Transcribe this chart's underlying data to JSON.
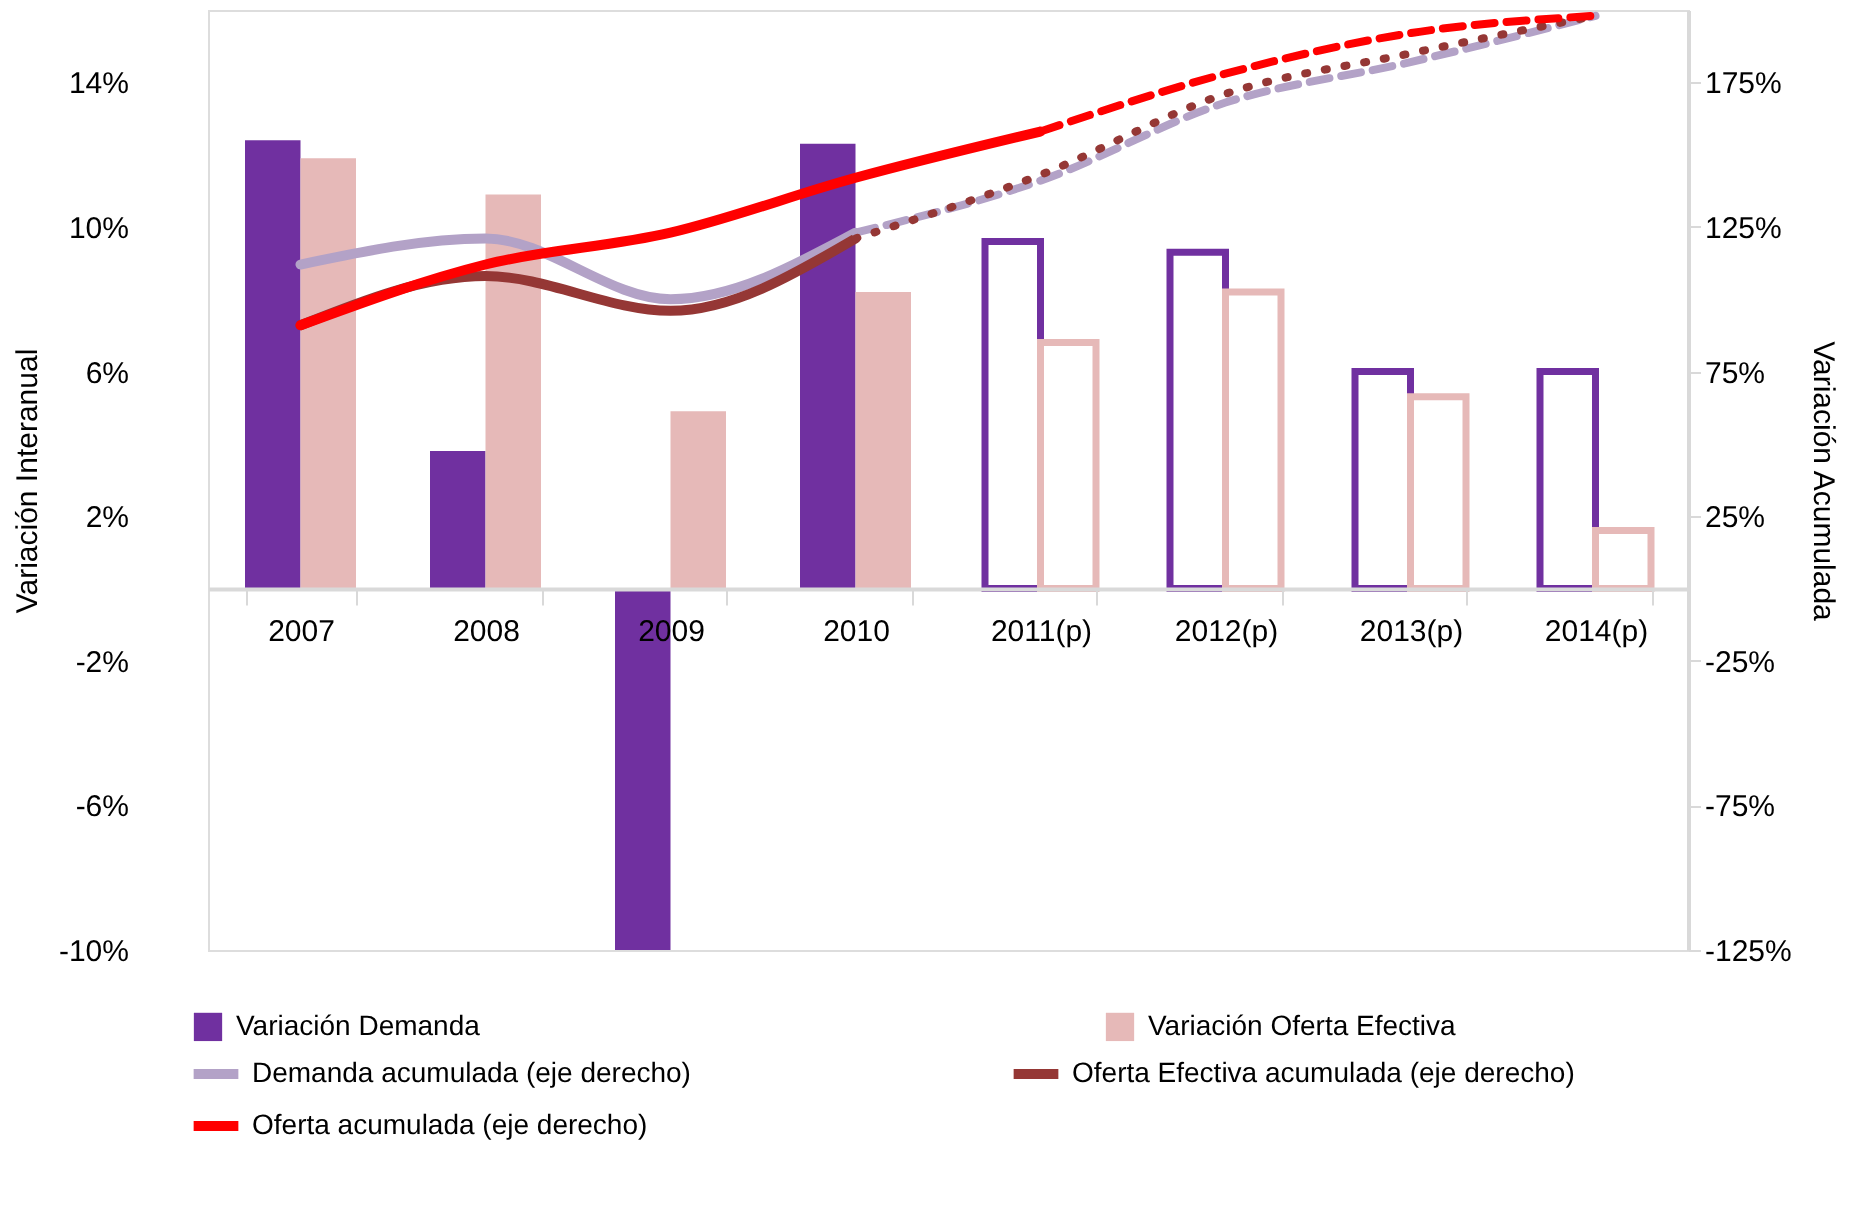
{
  "chart_data": {
    "type": "bar",
    "categories": [
      "2007",
      "2008",
      "2009",
      "2010",
      "2011(p)",
      "2012(p)",
      "2013(p)",
      "2014(p)"
    ],
    "ylabel": "Variación Interanual",
    "y2label": "Variación Acumulada",
    "ylim": [
      -10,
      16
    ],
    "yticks": [
      {
        "value": -10,
        "label": "-10%"
      },
      {
        "value": -6,
        "label": "-6%"
      },
      {
        "value": -2,
        "label": "-2%"
      },
      {
        "value": 2,
        "label": "2%"
      },
      {
        "value": 6,
        "label": "6%"
      },
      {
        "value": 10,
        "label": "10%"
      },
      {
        "value": 14,
        "label": "14%"
      }
    ],
    "y2lim": [
      -125,
      200
    ],
    "y2ticks": [
      {
        "value": -125,
        "label": "-125%"
      },
      {
        "value": -75,
        "label": "-75%"
      },
      {
        "value": -25,
        "label": "-25%"
      },
      {
        "value": 25,
        "label": "25%"
      },
      {
        "value": 75,
        "label": "75%"
      },
      {
        "value": 125,
        "label": "125%"
      },
      {
        "value": 175,
        "label": "175%"
      }
    ],
    "legend": "bottom",
    "grid": false,
    "series": [
      {
        "name": "Variación Demanda",
        "color": "#7030a0",
        "values": [
          12.4,
          3.8,
          -10.0,
          12.3,
          null,
          null,
          null,
          null
        ]
      },
      {
        "name": "Variación Oferta Efectiva",
        "color": "#e6b9b8",
        "values": [
          11.9,
          10.9,
          4.9,
          8.2,
          null,
          null,
          null,
          null
        ]
      },
      {
        "color": "#7030a0",
        "line_style": "solid",
        "values": [
          null,
          null,
          null,
          null,
          9.6,
          9.3,
          6.0,
          6.0
        ]
      },
      {
        "color": "#e6b9b8",
        "line_style": "solid",
        "values": [
          null,
          null,
          null,
          null,
          6.8,
          8.2,
          5.3,
          1.6
        ]
      },
      {
        "name": "Demanda acumulada (eje derecho)",
        "type": "line",
        "axis": "y2",
        "color": "#b3a2c7",
        "line_style": "solid",
        "values": [
          112,
          121,
          100,
          123,
          null,
          null,
          null,
          null
        ]
      },
      {
        "name": "Oferta Efectiva acumulada (eje derecho)",
        "type": "line",
        "axis": "y2",
        "color": "#953735",
        "line_style": "solid",
        "values": [
          91,
          108,
          96,
          121,
          null,
          null,
          null,
          null
        ]
      },
      {
        "name": "Oferta acumulada (eje derecho)",
        "type": "line",
        "axis": "y2",
        "color": "#ff0000",
        "line_style": "solid",
        "values": [
          91,
          112,
          123,
          142,
          158,
          null,
          null,
          null
        ]
      },
      {
        "type": "line",
        "axis": "y2",
        "color": "#b3a2c7",
        "line_style": "dashed",
        "values": [
          null,
          null,
          null,
          123,
          141,
          168,
          182,
          198
        ]
      },
      {
        "type": "line",
        "axis": "y2",
        "color": "#953735",
        "line_style": "dotted",
        "values": [
          null,
          null,
          null,
          121,
          143,
          171,
          185,
          198
        ]
      },
      {
        "type": "line",
        "axis": "y2",
        "color": "#ff0000",
        "line_style": "dashed",
        "values": [
          null,
          null,
          null,
          null,
          158,
          178,
          192,
          198
        ]
      }
    ]
  }
}
